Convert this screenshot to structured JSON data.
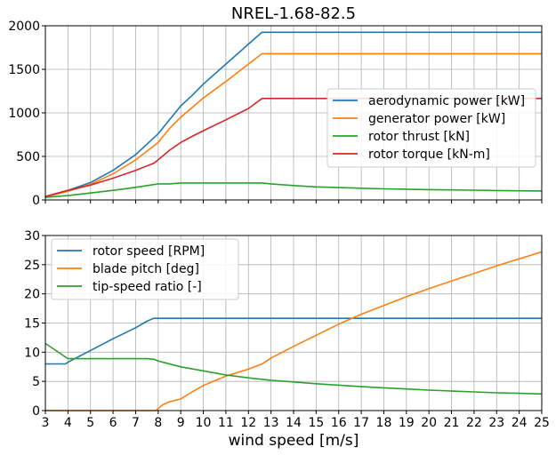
{
  "chart_data": [
    {
      "type": "line",
      "title": "NREL-1.68-82.5",
      "xlabel": "",
      "ylabel": "",
      "xlim": [
        3,
        25
      ],
      "ylim": [
        0,
        2000
      ],
      "yticks": [
        "0",
        "500",
        "1000",
        "1500",
        "2000"
      ],
      "xticks": [
        3,
        4,
        5,
        6,
        7,
        8,
        9,
        10,
        11,
        12,
        13,
        14,
        15,
        16,
        17,
        18,
        19,
        20,
        21,
        22,
        23,
        24,
        25
      ],
      "show_xtick_labels": false,
      "grid": true,
      "legend_position": "center-right",
      "series": [
        {
          "name": "aerodynamic power [kW]",
          "color": "#1f77b4",
          "x": [
            3,
            4,
            5,
            6,
            7,
            7.5,
            8,
            8.5,
            9,
            9.5,
            10,
            11,
            12,
            12.6,
            13,
            14,
            15,
            16,
            17,
            18,
            19,
            20,
            21,
            22,
            23,
            24,
            25
          ],
          "y": [
            40,
            110,
            200,
            340,
            520,
            640,
            760,
            920,
            1080,
            1200,
            1330,
            1560,
            1790,
            1925,
            1925,
            1925,
            1925,
            1925,
            1925,
            1925,
            1925,
            1925,
            1925,
            1925,
            1925,
            1925,
            1925
          ]
        },
        {
          "name": "generator power [kW]",
          "color": "#ff7f0e",
          "x": [
            3,
            4,
            5,
            6,
            7,
            7.5,
            8,
            8.5,
            9,
            9.5,
            10,
            11,
            12,
            12.6,
            13,
            14,
            15,
            16,
            17,
            18,
            19,
            20,
            21,
            22,
            23,
            24,
            25
          ],
          "y": [
            35,
            100,
            180,
            300,
            460,
            560,
            660,
            820,
            950,
            1060,
            1170,
            1360,
            1560,
            1680,
            1680,
            1680,
            1680,
            1680,
            1680,
            1680,
            1680,
            1680,
            1680,
            1680,
            1680,
            1680,
            1680
          ]
        },
        {
          "name": "rotor thrust [kN]",
          "color": "#2ca02c",
          "x": [
            3,
            4,
            5,
            6,
            7,
            8,
            8.5,
            9,
            10,
            11,
            12,
            12.6,
            13,
            14,
            15,
            16,
            17,
            18,
            19,
            20,
            21,
            22,
            23,
            24,
            25
          ],
          "y": [
            30,
            50,
            80,
            110,
            145,
            185,
            185,
            195,
            195,
            195,
            195,
            195,
            185,
            165,
            150,
            142,
            135,
            128,
            123,
            118,
            115,
            112,
            108,
            105,
            103
          ]
        },
        {
          "name": "rotor torque [kN-m]",
          "color": "#d62728",
          "x": [
            3,
            4,
            5,
            6,
            7,
            7.5,
            7.8,
            8,
            8.5,
            9,
            9.5,
            10,
            11,
            12,
            12.6,
            13,
            14,
            15,
            16,
            17,
            18,
            19,
            20,
            21,
            22,
            23,
            24,
            25
          ],
          "y": [
            40,
            110,
            170,
            250,
            340,
            390,
            420,
            460,
            570,
            660,
            730,
            795,
            920,
            1050,
            1165,
            1165,
            1165,
            1165,
            1165,
            1165,
            1165,
            1165,
            1165,
            1165,
            1165,
            1165,
            1165,
            1165
          ]
        }
      ]
    },
    {
      "type": "line",
      "title": "",
      "xlabel": "wind speed [m/s]",
      "ylabel": "",
      "xlim": [
        3,
        25
      ],
      "ylim": [
        0,
        30
      ],
      "yticks": [
        "0",
        "5",
        "10",
        "15",
        "20",
        "25",
        "30"
      ],
      "xticks": [
        3,
        4,
        5,
        6,
        7,
        8,
        9,
        10,
        11,
        12,
        13,
        14,
        15,
        16,
        17,
        18,
        19,
        20,
        21,
        22,
        23,
        24,
        25
      ],
      "show_xtick_labels": true,
      "grid": true,
      "legend_position": "upper-left",
      "series": [
        {
          "name": "rotor speed [RPM]",
          "color": "#1f77b4",
          "x": [
            3,
            3.9,
            4,
            5,
            6,
            7,
            7.5,
            7.8,
            8,
            9,
            10,
            12,
            14,
            16,
            18,
            20,
            22,
            24,
            25
          ],
          "y": [
            8,
            8,
            8.3,
            10.3,
            12.3,
            14.2,
            15.3,
            15.8,
            15.8,
            15.8,
            15.8,
            15.8,
            15.8,
            15.8,
            15.8,
            15.8,
            15.8,
            15.8,
            15.8
          ]
        },
        {
          "name": "blade pitch [deg]",
          "color": "#ff7f0e",
          "x": [
            3,
            7.9,
            8.2,
            8.5,
            9,
            9.5,
            10,
            11,
            12,
            12.6,
            13,
            14,
            15,
            16,
            17,
            18,
            19,
            20,
            21,
            22,
            23,
            24,
            25
          ],
          "y": [
            0,
            0,
            1.0,
            1.5,
            2.0,
            3.2,
            4.3,
            5.9,
            7.1,
            8.0,
            9.0,
            11.0,
            12.9,
            14.8,
            16.5,
            18.0,
            19.5,
            20.9,
            22.2,
            23.5,
            24.8,
            26.0,
            27.2
          ]
        },
        {
          "name": "tip-speed ratio [-]",
          "color": "#2ca02c",
          "x": [
            3,
            3.5,
            4,
            5,
            6,
            7,
            7.5,
            7.8,
            8,
            9,
            10,
            11,
            12,
            13,
            14,
            15,
            16,
            17,
            18,
            19,
            20,
            21,
            22,
            23,
            24,
            25
          ],
          "y": [
            11.5,
            10.2,
            8.9,
            8.9,
            8.9,
            8.9,
            8.9,
            8.8,
            8.5,
            7.5,
            6.8,
            6.1,
            5.6,
            5.2,
            4.9,
            4.6,
            4.35,
            4.1,
            3.9,
            3.7,
            3.5,
            3.35,
            3.2,
            3.05,
            2.95,
            2.85
          ]
        }
      ]
    }
  ]
}
